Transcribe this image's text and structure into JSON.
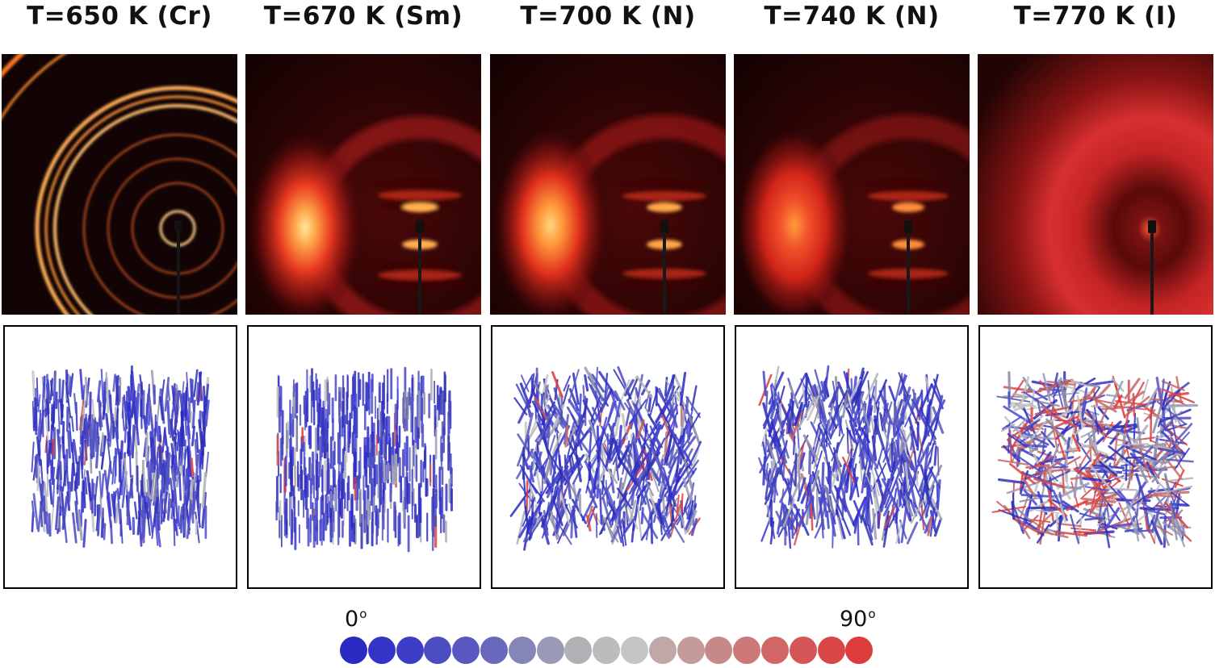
{
  "columns": [
    {
      "title": "T=650 K (Cr)",
      "pattern": "crystal",
      "tilt": 0.05
    },
    {
      "title": "T=670 K (Sm)",
      "pattern": "smectic",
      "tilt": 0.0
    },
    {
      "title": "T=700 K (N)",
      "pattern": "nematic",
      "tilt": 0.25
    },
    {
      "title": "T=740 K (N)",
      "pattern": "nematic",
      "tilt": 0.2
    },
    {
      "title": "T=770 K (I)",
      "pattern": "isotropic",
      "tilt": 0.7
    }
  ],
  "colorbar": {
    "min_label": "0",
    "max_label": "90",
    "unit": "o",
    "colors": [
      "#2b2bc4",
      "#3434c6",
      "#3d3dc5",
      "#4d4dc2",
      "#5858c0",
      "#6868bd",
      "#8585b8",
      "#9a9ab6",
      "#b0b0b5",
      "#bcbcbc",
      "#c4c4c4",
      "#c0a8a8",
      "#c49a9a",
      "#c68888",
      "#cc7878",
      "#d06666",
      "#d45656",
      "#d84646",
      "#dc3c3c"
    ]
  }
}
